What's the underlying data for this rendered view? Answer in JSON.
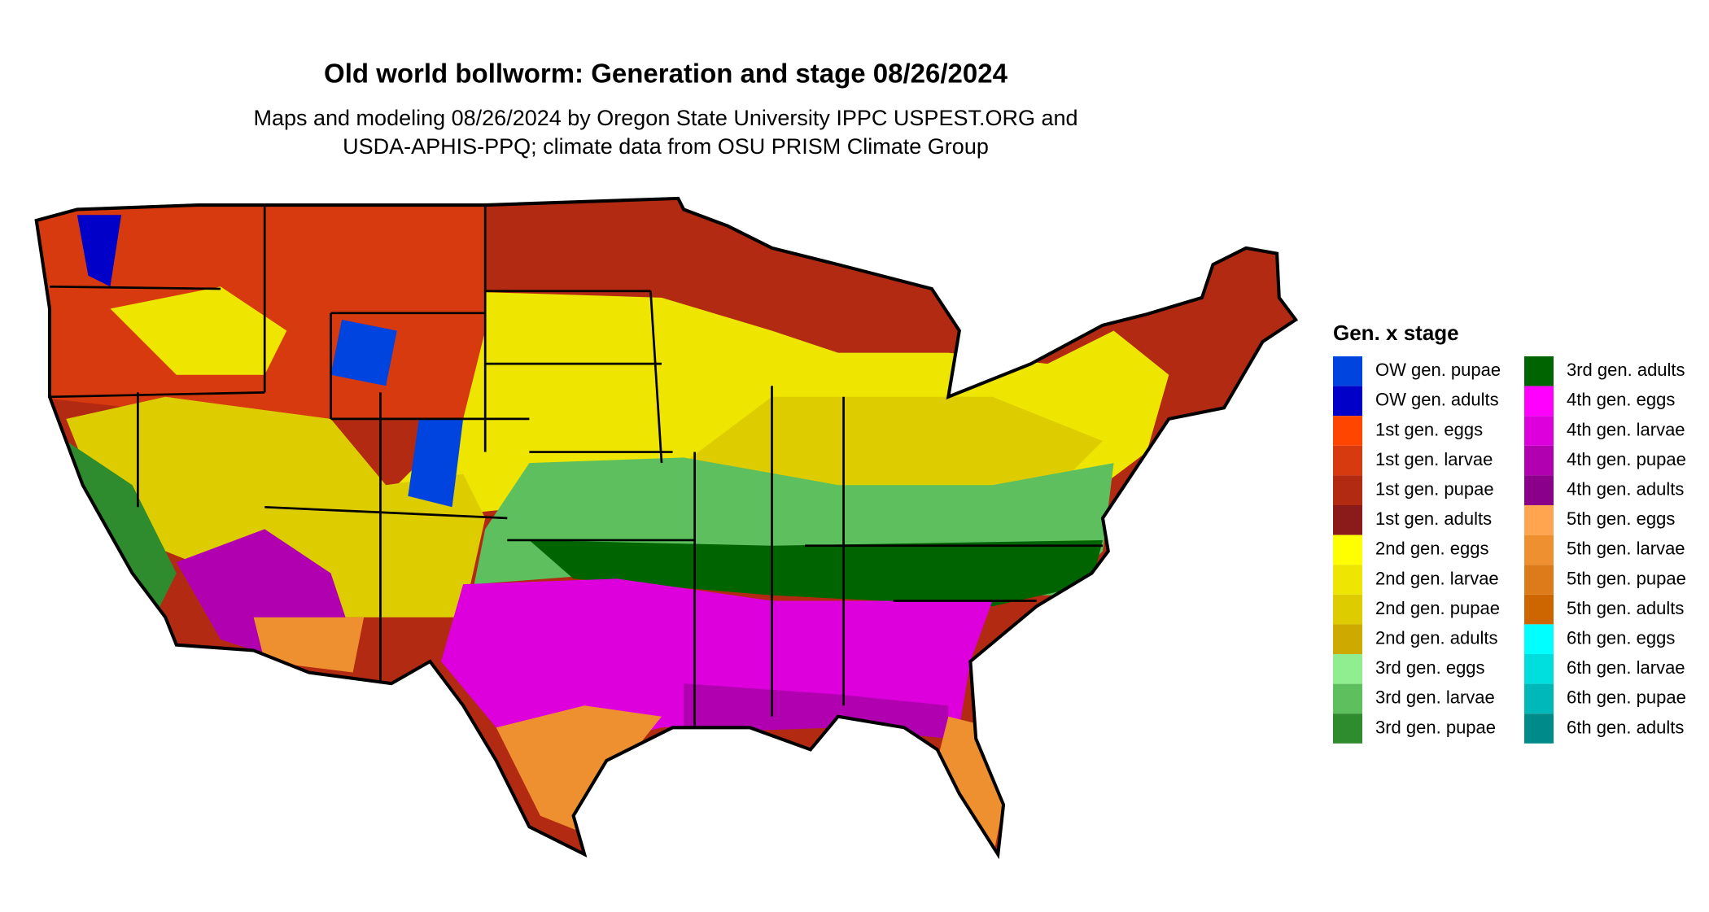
{
  "title": "Old world bollworm: Generation and stage 08/26/2024",
  "subtitle": [
    "Maps and modeling 08/26/2024 by Oregon State University IPPC USPEST.ORG and",
    "USDA-APHIS-PPQ; climate data from OSU PRISM Climate Group"
  ],
  "legend": {
    "title": "Gen. x stage",
    "items": [
      {
        "label": "OW gen. pupae",
        "color": "#0044e0"
      },
      {
        "label": "OW gen. adults",
        "color": "#0000c8"
      },
      {
        "label": "1st gen. eggs",
        "color": "#ff4500"
      },
      {
        "label": "1st gen. larvae",
        "color": "#d63a0e"
      },
      {
        "label": "1st gen. pupae",
        "color": "#b22a12"
      },
      {
        "label": "1st gen. adults",
        "color": "#8b1a1a"
      },
      {
        "label": "2nd gen. eggs",
        "color": "#ffff00"
      },
      {
        "label": "2nd gen. larvae",
        "color": "#eee600"
      },
      {
        "label": "2nd gen. pupae",
        "color": "#dccc00"
      },
      {
        "label": "2nd gen. adults",
        "color": "#cdaa00"
      },
      {
        "label": "3rd gen. eggs",
        "color": "#90ee90"
      },
      {
        "label": "3rd gen. larvae",
        "color": "#5ebf5e"
      },
      {
        "label": "3rd gen. pupae",
        "color": "#2e8b2e"
      },
      {
        "label": "3rd gen. adults",
        "color": "#006400"
      },
      {
        "label": "4th gen. eggs",
        "color": "#ff00ff"
      },
      {
        "label": "4th gen. larvae",
        "color": "#dd00dd"
      },
      {
        "label": "4th gen. pupae",
        "color": "#b000b0"
      },
      {
        "label": "4th gen. adults",
        "color": "#8b008b"
      },
      {
        "label": "5th gen. eggs",
        "color": "#ffa54f"
      },
      {
        "label": "5th gen. larvae",
        "color": "#ee9030"
      },
      {
        "label": "5th gen. pupae",
        "color": "#dd7a1a"
      },
      {
        "label": "5th gen. adults",
        "color": "#cd6600"
      },
      {
        "label": "6th gen. eggs",
        "color": "#00ffff"
      },
      {
        "label": "6th gen. larvae",
        "color": "#00dddd"
      },
      {
        "label": "6th gen. pupae",
        "color": "#00b8b8"
      },
      {
        "label": "6th gen. adults",
        "color": "#008b8b"
      }
    ]
  }
}
